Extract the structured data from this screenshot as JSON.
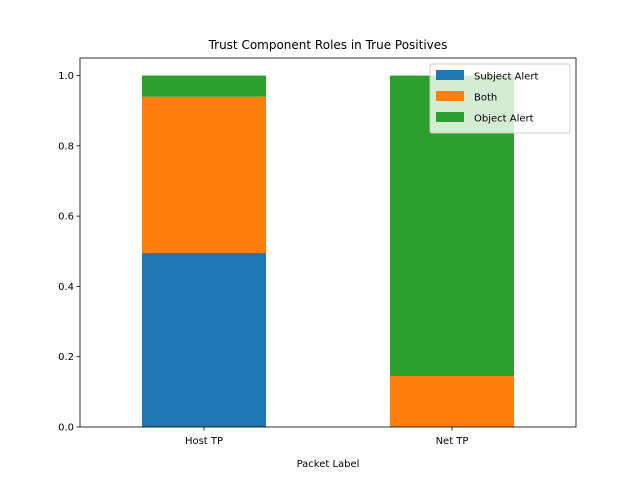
{
  "chart_data": {
    "type": "bar",
    "stacked": true,
    "title": "Trust Component Roles in True Positives",
    "xlabel": "Packet Label",
    "ylabel": "",
    "categories": [
      "Host TP",
      "Net TP"
    ],
    "series": [
      {
        "name": "Subject Alert",
        "color": "#1f77b4",
        "values": [
          0.495,
          0.0
        ]
      },
      {
        "name": "Both",
        "color": "#ff7f0e",
        "values": [
          0.445,
          0.145
        ]
      },
      {
        "name": "Object Alert",
        "color": "#2ca02c",
        "values": [
          0.06,
          0.855
        ]
      }
    ],
    "ylim": [
      0,
      1.05
    ],
    "yticks": [
      "0.0",
      "0.2",
      "0.4",
      "0.6",
      "0.8",
      "1.0"
    ],
    "grid": false,
    "legend_position": "top-right"
  }
}
